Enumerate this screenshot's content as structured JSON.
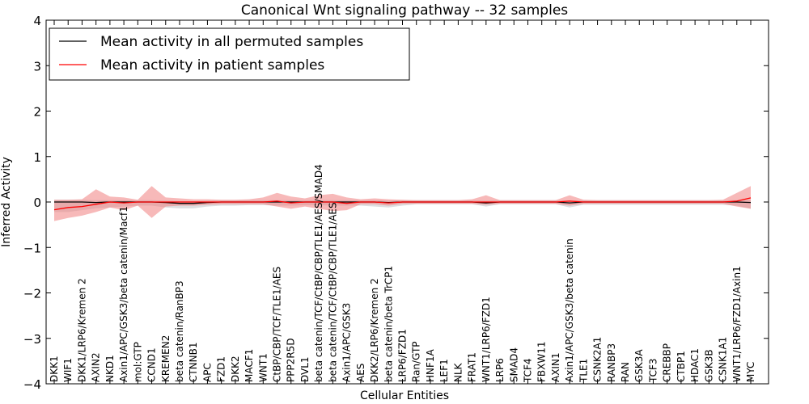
{
  "chart_data": {
    "type": "line",
    "title": "Canonical Wnt signaling pathway -- 32 samples",
    "xlabel": "Cellular Entities",
    "ylabel": "Inferred Activity",
    "ylim": [
      -4,
      4
    ],
    "yticks": [
      "-4",
      "-3",
      "-2",
      "-1",
      "0",
      "1",
      "2",
      "3",
      "4"
    ],
    "legend_position": "top-left",
    "categories": [
      "DKK1",
      "WIF1",
      "DKK1/LRP6/Kremen 2",
      "AXIN2",
      "NKD1",
      "Axin1/APC/GSK3/beta catenin/Macf1",
      "mol:GTP",
      "CCND1",
      "KREMEN2",
      "beta catenin/RanBP3",
      "CTNNB1",
      "APC",
      "FZD1",
      "DKK2",
      "MACF1",
      "WNT1",
      "CtBP/CBP/TCF/TLE1/AES",
      "PPP2R5D",
      "DVL1",
      "beta catenin/TCF/CtBP/CBP/TLE1/AES/SMAD4",
      "beta catenin/TCF/CtBP/CBP/TLE1/AES",
      "Axin1/APC/GSK3",
      "AES",
      "DKK2/LRP6/Kremen 2",
      "beta catenin/beta TrCP1",
      "LRP6/FZD1",
      "Ran/GTP",
      "HNF1A",
      "LEF1",
      "NLK",
      "FRAT1",
      "WNT1/LRP6/FZD1",
      "LRP6",
      "SMAD4",
      "TCF4",
      "FBXW11",
      "AXIN1",
      "Axin1/APC/GSK3/beta catenin",
      "TLE1",
      "CSNK2A1",
      "RANBP3",
      "RAN",
      "GSK3A",
      "TCF3",
      "CREBBP",
      "CTBP1",
      "HDAC1",
      "GSK3B",
      "CSNK1A1",
      "WNT1/LRP6/FZD1/Axin1",
      "MYC"
    ],
    "series": [
      {
        "name": "Mean activity in all permuted samples",
        "color": "#000000",
        "band_color": "#c8c8cc",
        "values": [
          0.0,
          0.0,
          0.0,
          -0.01,
          0.0,
          0.0,
          0.0,
          0.0,
          -0.01,
          -0.03,
          -0.03,
          -0.01,
          0.0,
          0.0,
          0.0,
          0.0,
          0.0,
          0.0,
          0.0,
          0.0,
          0.0,
          0.0,
          0.0,
          0.0,
          -0.01,
          0.0,
          0.0,
          0.0,
          0.0,
          0.0,
          0.0,
          -0.02,
          0.0,
          0.0,
          0.0,
          0.0,
          0.0,
          -0.02,
          0.0,
          0.0,
          0.0,
          0.0,
          0.0,
          0.0,
          0.0,
          0.0,
          0.0,
          0.0,
          0.0,
          0.0,
          -0.01
        ],
        "lower": [
          -0.22,
          -0.22,
          -0.18,
          -0.14,
          -0.12,
          -0.1,
          -0.08,
          -0.08,
          -0.12,
          -0.14,
          -0.14,
          -0.1,
          -0.08,
          -0.08,
          -0.07,
          -0.07,
          -0.08,
          -0.08,
          -0.07,
          -0.07,
          -0.08,
          -0.08,
          -0.08,
          -0.1,
          -0.12,
          -0.08,
          -0.05,
          -0.05,
          -0.05,
          -0.05,
          -0.05,
          -0.1,
          -0.05,
          -0.05,
          -0.05,
          -0.05,
          -0.05,
          -0.12,
          -0.06,
          -0.06,
          -0.06,
          -0.06,
          -0.06,
          -0.06,
          -0.06,
          -0.06,
          -0.06,
          -0.06,
          -0.06,
          -0.08,
          -0.15
        ],
        "upper": [
          0.05,
          0.05,
          0.05,
          0.04,
          0.04,
          0.04,
          0.04,
          0.04,
          0.03,
          0.02,
          0.02,
          0.03,
          0.04,
          0.04,
          0.04,
          0.04,
          0.04,
          0.04,
          0.04,
          0.04,
          0.04,
          0.04,
          0.04,
          0.04,
          0.03,
          0.04,
          0.04,
          0.04,
          0.04,
          0.04,
          0.04,
          0.03,
          0.04,
          0.04,
          0.04,
          0.04,
          0.04,
          0.03,
          0.04,
          0.04,
          0.04,
          0.04,
          0.04,
          0.04,
          0.04,
          0.04,
          0.04,
          0.04,
          0.04,
          0.04,
          0.05
        ]
      },
      {
        "name": "Mean activity in patient samples",
        "color": "#ff0000",
        "band_color": "#f08080",
        "values": [
          -0.17,
          -0.12,
          -0.1,
          -0.05,
          0.0,
          -0.02,
          0.0,
          0.0,
          0.0,
          0.0,
          0.0,
          0.0,
          0.0,
          0.0,
          0.0,
          0.0,
          0.02,
          -0.02,
          0.0,
          0.0,
          0.0,
          -0.03,
          0.0,
          0.0,
          -0.02,
          0.0,
          0.0,
          0.0,
          0.0,
          0.0,
          0.0,
          0.0,
          0.0,
          0.0,
          0.0,
          0.0,
          0.0,
          0.02,
          0.0,
          0.0,
          0.0,
          0.0,
          0.0,
          0.0,
          0.0,
          0.0,
          0.0,
          0.0,
          0.0,
          0.02,
          0.09
        ],
        "lower": [
          -0.42,
          -0.35,
          -0.3,
          -0.22,
          -0.12,
          -0.18,
          -0.08,
          -0.35,
          -0.1,
          -0.08,
          -0.08,
          -0.06,
          -0.05,
          -0.05,
          -0.05,
          -0.05,
          -0.1,
          -0.15,
          -0.1,
          -0.15,
          -0.2,
          -0.18,
          -0.05,
          -0.05,
          -0.08,
          -0.04,
          -0.04,
          -0.04,
          -0.04,
          -0.04,
          -0.04,
          -0.06,
          -0.04,
          -0.04,
          -0.04,
          -0.04,
          -0.04,
          -0.08,
          -0.04,
          -0.04,
          -0.04,
          -0.04,
          -0.04,
          -0.04,
          -0.04,
          -0.04,
          -0.04,
          -0.04,
          -0.04,
          -0.1,
          -0.15
        ],
        "upper": [
          0.05,
          0.05,
          0.06,
          0.28,
          0.12,
          0.1,
          0.05,
          0.35,
          0.1,
          0.08,
          0.06,
          0.06,
          0.05,
          0.05,
          0.06,
          0.1,
          0.2,
          0.12,
          0.08,
          0.15,
          0.18,
          0.1,
          0.06,
          0.08,
          0.06,
          0.05,
          0.04,
          0.04,
          0.04,
          0.04,
          0.06,
          0.15,
          0.04,
          0.04,
          0.04,
          0.04,
          0.04,
          0.15,
          0.05,
          0.04,
          0.04,
          0.04,
          0.04,
          0.04,
          0.04,
          0.04,
          0.04,
          0.04,
          0.05,
          0.2,
          0.35
        ]
      }
    ]
  }
}
